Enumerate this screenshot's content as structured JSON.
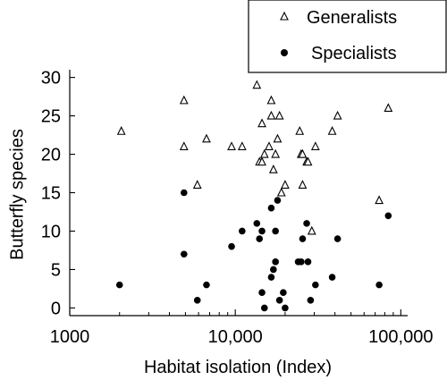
{
  "chart_data": {
    "type": "scatter",
    "title": "",
    "xlabel": "Habitat isolation (Index)",
    "ylabel": "Butterfly species",
    "xscale": "log",
    "xlim": [
      1000,
      110000
    ],
    "ylim": [
      -1,
      31
    ],
    "xticks": [
      1000,
      10000,
      100000
    ],
    "xtick_labels": [
      "1000",
      "10,000",
      "100,000"
    ],
    "yticks": [
      0,
      5,
      10,
      15,
      20,
      25,
      30
    ],
    "ytick_labels": [
      "0",
      "5",
      "10",
      "15",
      "20",
      "25",
      "30"
    ],
    "grid": false,
    "legend_position": "top-right",
    "series": [
      {
        "name": "Generalists",
        "marker": "open-triangle",
        "color": "#000000",
        "points": [
          [
            2050,
            23
          ],
          [
            4900,
            27
          ],
          [
            4900,
            21
          ],
          [
            5900,
            16
          ],
          [
            6700,
            22
          ],
          [
            9500,
            21
          ],
          [
            11000,
            21
          ],
          [
            13500,
            29
          ],
          [
            14000,
            19
          ],
          [
            14500,
            19
          ],
          [
            14500,
            24
          ],
          [
            15000,
            20
          ],
          [
            16000,
            21
          ],
          [
            16500,
            27
          ],
          [
            16500,
            25
          ],
          [
            17000,
            18
          ],
          [
            17500,
            20
          ],
          [
            18000,
            22
          ],
          [
            18500,
            25
          ],
          [
            19000,
            15
          ],
          [
            20000,
            16
          ],
          [
            24500,
            23
          ],
          [
            25000,
            20
          ],
          [
            25500,
            20
          ],
          [
            25500,
            16
          ],
          [
            27000,
            19
          ],
          [
            27500,
            19
          ],
          [
            29000,
            10
          ],
          [
            30500,
            21
          ],
          [
            38500,
            23
          ],
          [
            41500,
            25
          ],
          [
            74000,
            14
          ],
          [
            84000,
            26
          ]
        ]
      },
      {
        "name": "Specialists",
        "marker": "filled-circle",
        "color": "#000000",
        "points": [
          [
            2000,
            3
          ],
          [
            4900,
            15
          ],
          [
            4900,
            7
          ],
          [
            5900,
            1
          ],
          [
            6700,
            3
          ],
          [
            9500,
            8
          ],
          [
            11000,
            10
          ],
          [
            13500,
            11
          ],
          [
            14000,
            9
          ],
          [
            14500,
            10
          ],
          [
            14500,
            2
          ],
          [
            15000,
            0
          ],
          [
            16500,
            4
          ],
          [
            16500,
            13
          ],
          [
            17000,
            5
          ],
          [
            17500,
            6
          ],
          [
            17500,
            10
          ],
          [
            18000,
            14
          ],
          [
            18500,
            1
          ],
          [
            19500,
            2
          ],
          [
            20000,
            0
          ],
          [
            24000,
            6
          ],
          [
            25000,
            6
          ],
          [
            25500,
            9
          ],
          [
            27000,
            11
          ],
          [
            27500,
            6
          ],
          [
            28500,
            1
          ],
          [
            30500,
            3
          ],
          [
            38500,
            4
          ],
          [
            41500,
            9
          ],
          [
            74000,
            3
          ],
          [
            84000,
            12
          ]
        ]
      }
    ]
  }
}
